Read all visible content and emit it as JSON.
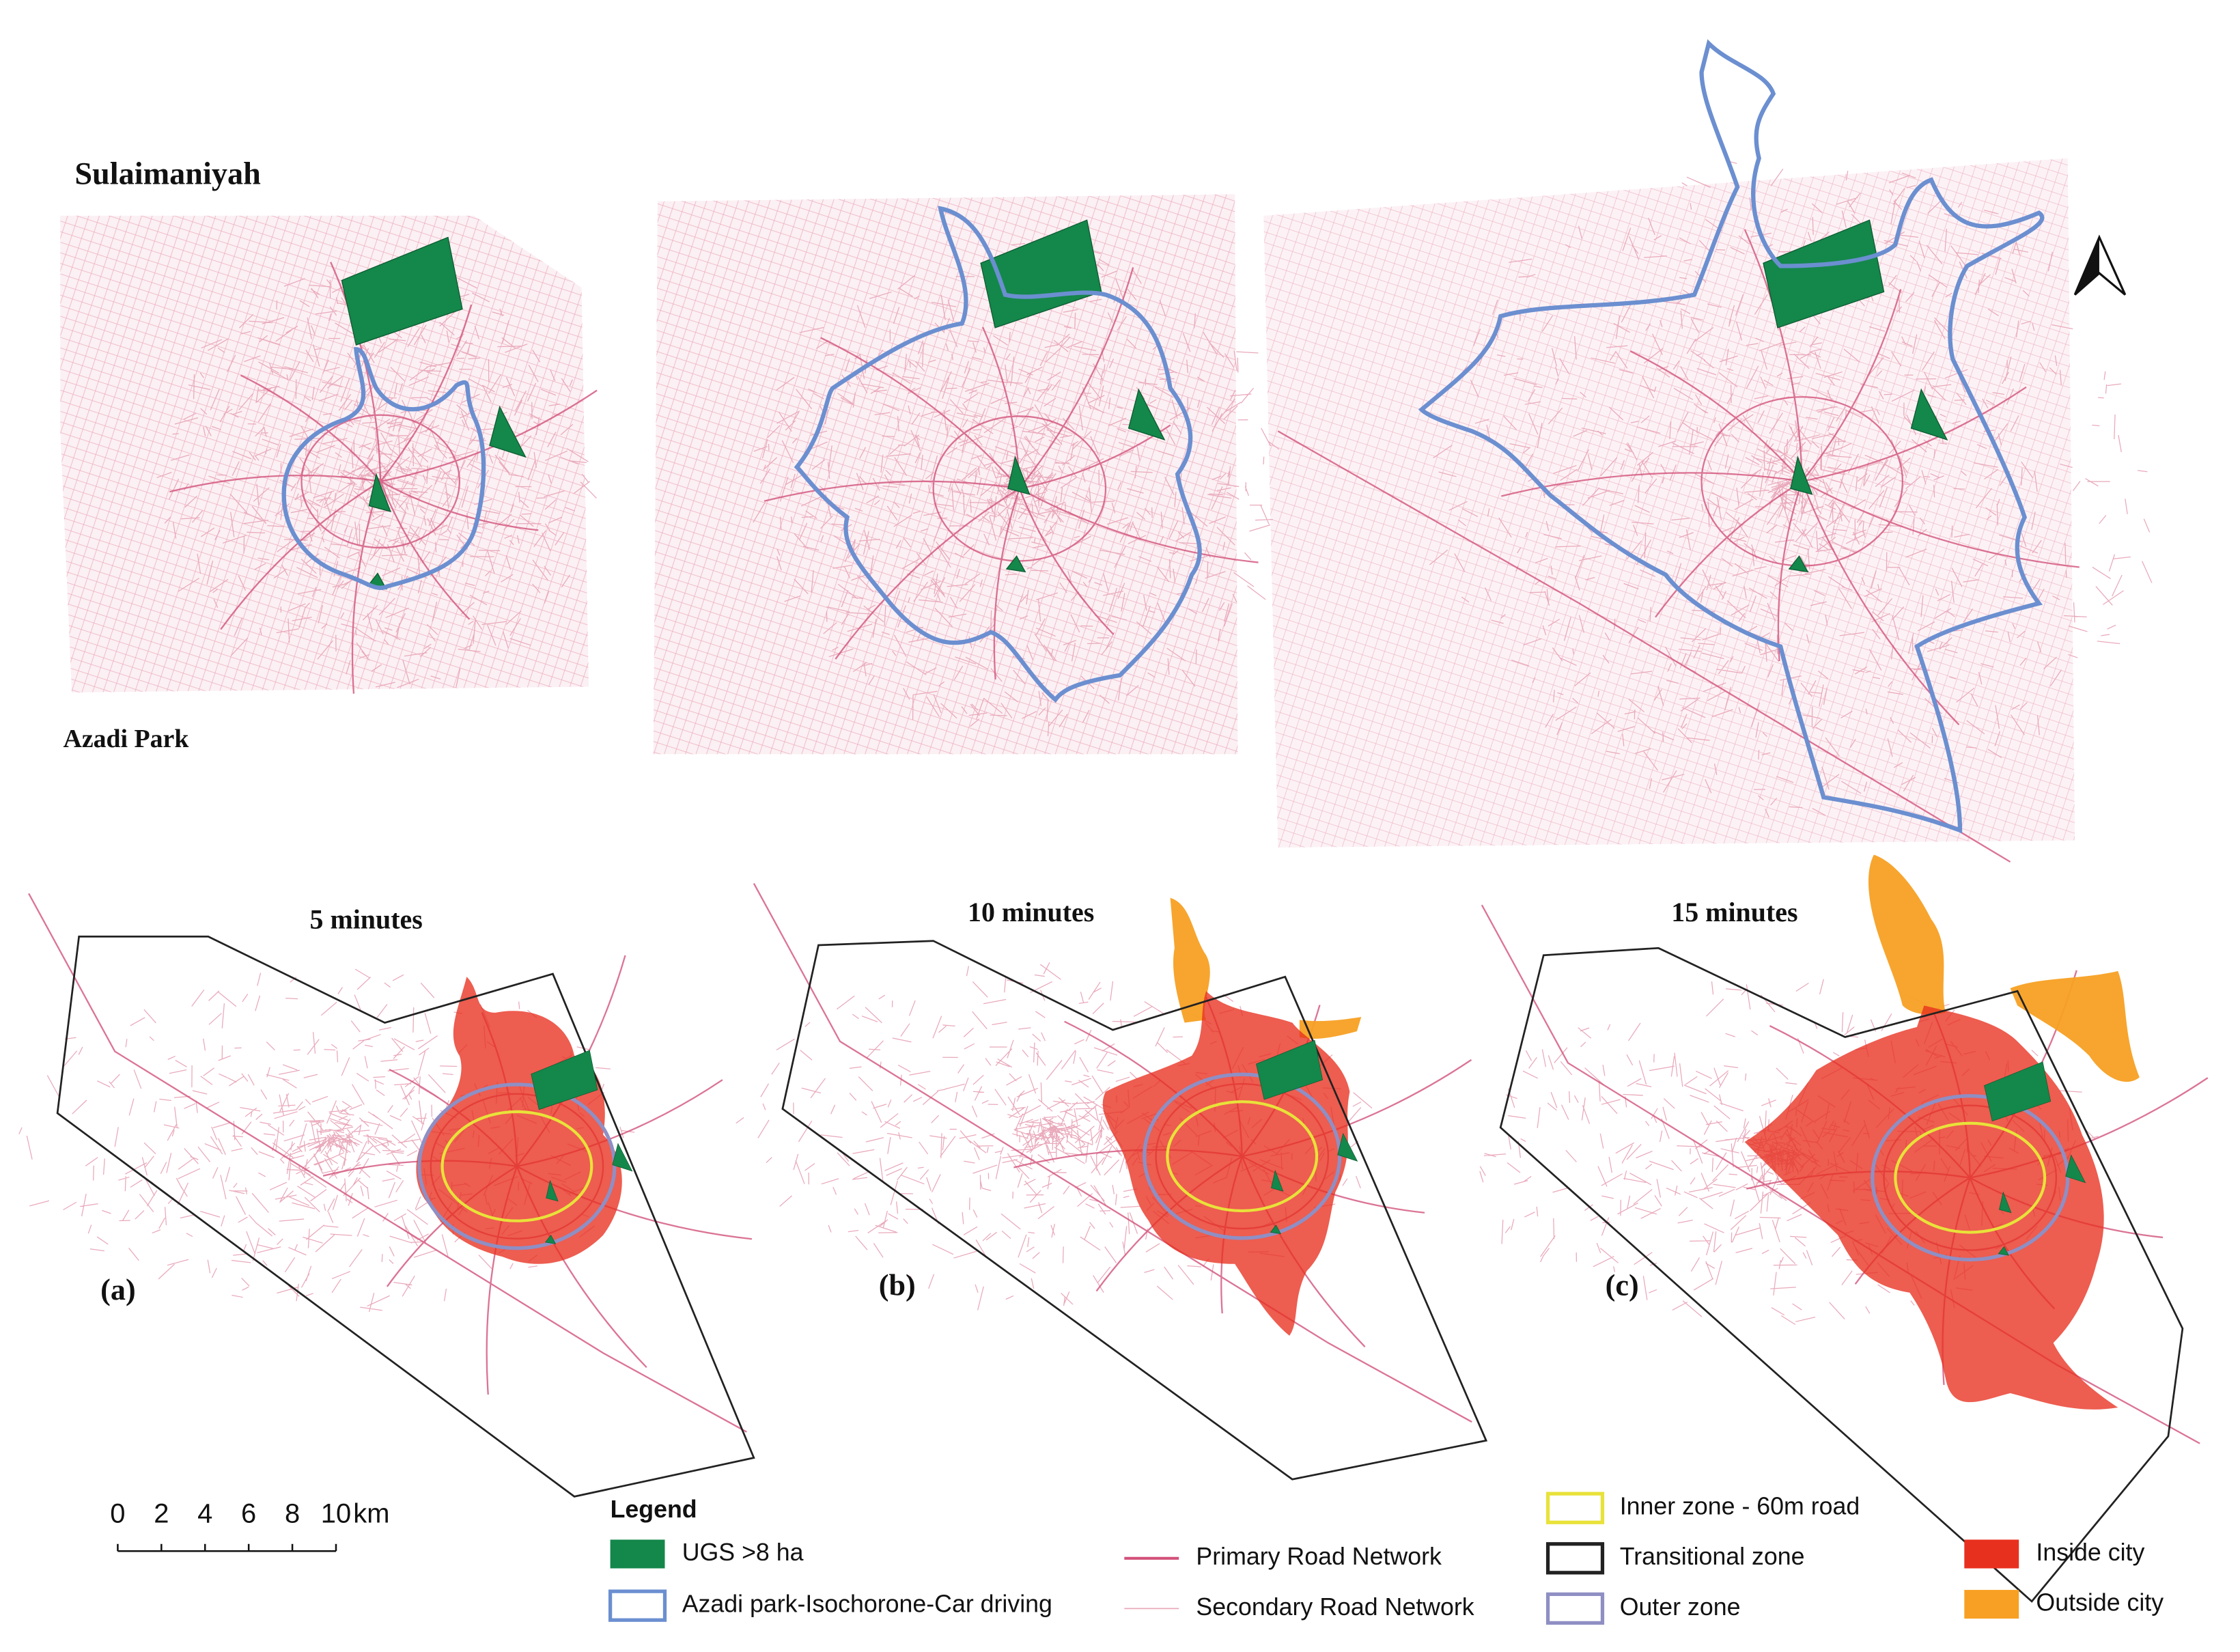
{
  "title": "Sulaimaniyah",
  "subtitle": "Azadi Park",
  "panels": [
    {
      "time": "5 minutes",
      "label": "(a)"
    },
    {
      "time": "10 minutes",
      "label": "(b)"
    },
    {
      "time": "15 minutes",
      "label": "(c)"
    }
  ],
  "scale_bar": {
    "ticks": [
      0,
      2,
      4,
      6,
      8,
      10
    ],
    "unit": "km"
  },
  "legend": {
    "title": "Legend",
    "items": [
      {
        "label": "UGS >8 ha",
        "color": "#14874a"
      },
      {
        "label": "Azadi park-Isochorone-Car driving",
        "color": "#6b8fd0"
      },
      {
        "label": "Primary Road Network",
        "color": "#d2517a"
      },
      {
        "label": "Secondary Road Network",
        "color": "#e9a9bb"
      },
      {
        "label": "Inner zone - 60m road",
        "color": "#e8e23a"
      },
      {
        "label": "Transitional zone",
        "color": "#222222"
      },
      {
        "label": "Outer zone",
        "color": "#8f8fc4"
      },
      {
        "label": "Inside city",
        "color": "#e8301f"
      },
      {
        "label": "Outside city",
        "color": "#f7a023"
      }
    ]
  }
}
